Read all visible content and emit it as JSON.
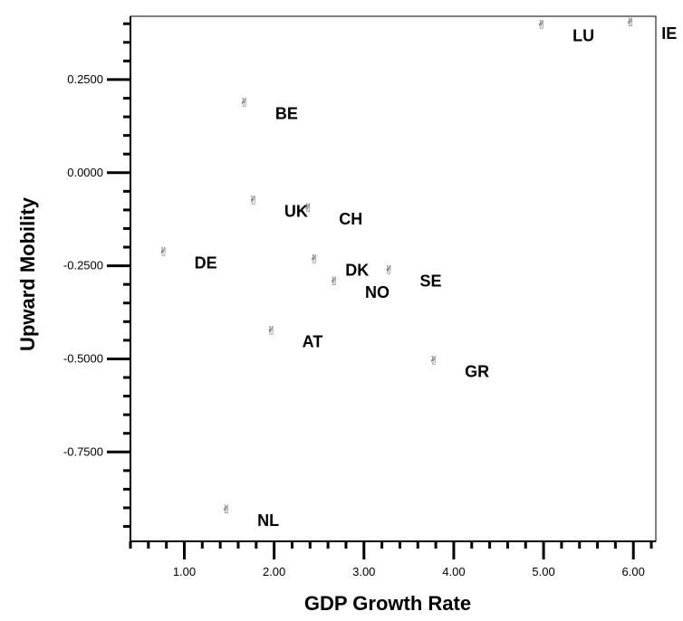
{
  "chart_data": {
    "type": "scatter",
    "xlabel": "GDP Growth Rate",
    "ylabel": "Upward Mobility",
    "xlim": [
      0.4,
      6.25
    ],
    "ylim": [
      -0.99,
      0.42
    ],
    "x_ticks": [
      1.0,
      2.0,
      3.0,
      4.0,
      5.0,
      6.0
    ],
    "x_tick_labels": [
      "1.00",
      "2.00",
      "3.00",
      "4.00",
      "5.00",
      "6.00"
    ],
    "y_ticks": [
      0.25,
      0.0,
      -0.25,
      -0.5,
      -0.75
    ],
    "y_tick_labels": [
      "0.2500",
      "0.0000",
      "-0.2500",
      "-0.5000",
      "-0.7500"
    ],
    "marker_glyph": "✌",
    "points": [
      {
        "label": "IE",
        "x": 5.97,
        "y": 0.403
      },
      {
        "label": "LU",
        "x": 4.98,
        "y": 0.397
      },
      {
        "label": "BE",
        "x": 1.67,
        "y": 0.188
      },
      {
        "label": "UK",
        "x": 1.77,
        "y": -0.075
      },
      {
        "label": "CH",
        "x": 2.38,
        "y": -0.095
      },
      {
        "label": "DE",
        "x": 0.77,
        "y": -0.213
      },
      {
        "label": "DK",
        "x": 2.45,
        "y": -0.233
      },
      {
        "label": "SE",
        "x": 3.28,
        "y": -0.262
      },
      {
        "label": "NO",
        "x": 2.67,
        "y": -0.292
      },
      {
        "label": "AT",
        "x": 1.97,
        "y": -0.425
      },
      {
        "label": "GR",
        "x": 3.78,
        "y": -0.505
      },
      {
        "label": "NL",
        "x": 1.47,
        "y": -0.905
      }
    ]
  }
}
